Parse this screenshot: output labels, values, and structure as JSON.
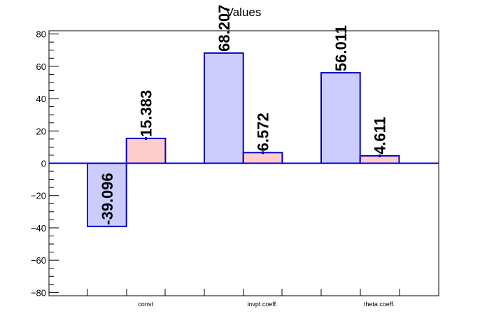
{
  "chart_data": {
    "type": "bar",
    "title": "Values",
    "categories": [
      "const",
      "invpt coeff.",
      "theta coeff."
    ],
    "series": [
      {
        "values": [
          -39.096,
          68.207,
          56.011
        ],
        "labels": [
          "-39.096",
          "68.207",
          "56.011"
        ],
        "color": "#ccccff"
      },
      {
        "values": [
          15.383,
          6.572,
          4.611
        ],
        "labels": [
          "15.383",
          "6.572",
          "4.611"
        ],
        "color": "#ffcccc"
      }
    ],
    "ylim": [
      -82,
      82
    ],
    "yticks": [
      -80,
      -60,
      -40,
      -20,
      0,
      20,
      40,
      60,
      80
    ],
    "ytick_labels": [
      "−80",
      "−60",
      "−40",
      "−20",
      "0",
      "20",
      "40",
      "60",
      "80"
    ],
    "outline_color": "#0000cc",
    "grid": false,
    "xlabel": "",
    "ylabel": ""
  }
}
